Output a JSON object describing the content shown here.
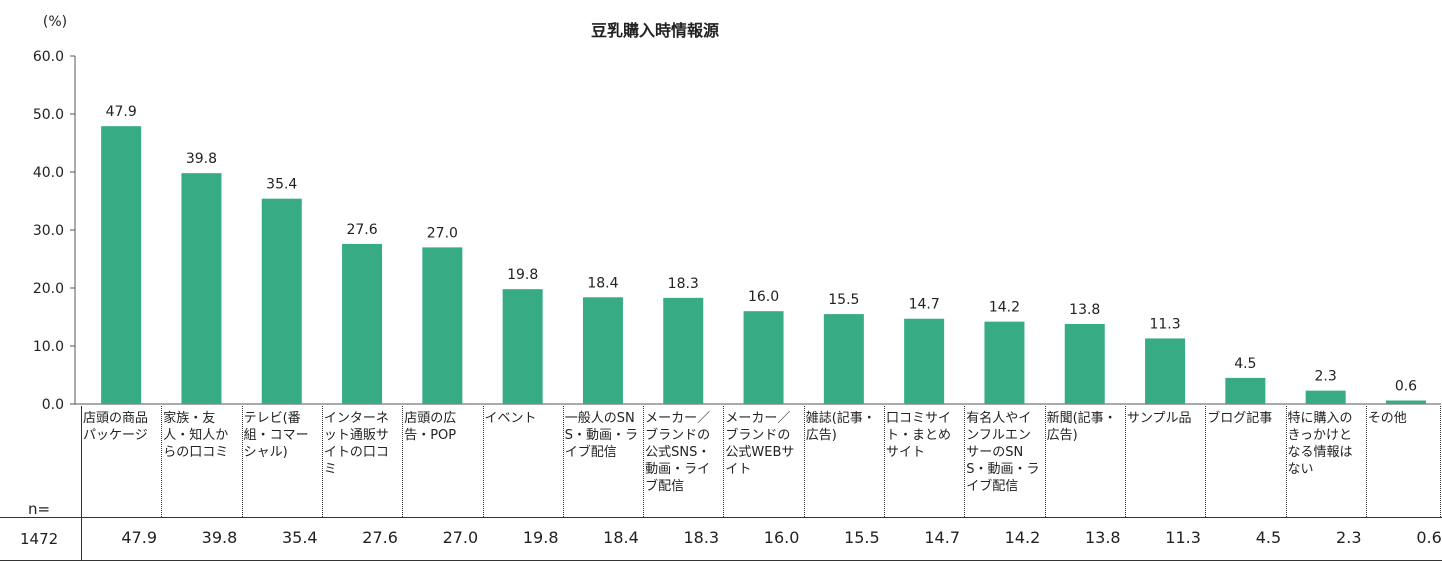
{
  "chart_data": {
    "type": "bar",
    "title": "豆乳購入時情報源",
    "ylabel": "(%)",
    "xlabel": "",
    "ylim": [
      0,
      60
    ],
    "yticks": [
      "0.0",
      "10.0",
      "20.0",
      "30.0",
      "40.0",
      "50.0",
      "60.0"
    ],
    "categories": [
      "店頭の商品パッケージ",
      "家族・友人・知人からの口コミ",
      "テレビ(番組・コマーシャル)",
      "インターネット通販サイトの口コミ",
      "店頭の広告・POP",
      "イベント",
      "一般人のSNS・動画・ライブ配信",
      "メーカー／ブランドの公式SNS・動画・ライブ配信",
      "メーカー／ブランドの公式WEBサイト",
      "雑誌(記事・広告)",
      "口コミサイト・まとめサイト",
      "有名人やインフルエンサーのSNS・動画・ライブ配信",
      "新聞(記事・広告)",
      "サンプル品",
      "ブログ記事",
      "特に購入のきっかけとなる情報はない",
      "その他"
    ],
    "values": [
      47.9,
      39.8,
      35.4,
      27.6,
      27.0,
      19.8,
      18.4,
      18.3,
      16.0,
      15.5,
      14.7,
      14.2,
      13.8,
      11.3,
      4.5,
      2.3,
      0.6
    ],
    "value_labels": [
      "47.9",
      "39.8",
      "35.4",
      "27.6",
      "27.0",
      "19.8",
      "18.4",
      "18.3",
      "16.0",
      "15.5",
      "14.7",
      "14.2",
      "13.8",
      "11.3",
      "4.5",
      "2.3",
      "0.6"
    ],
    "bar_color": "#36ab84"
  },
  "table": {
    "n_label": "n=",
    "n_value": "1472"
  }
}
